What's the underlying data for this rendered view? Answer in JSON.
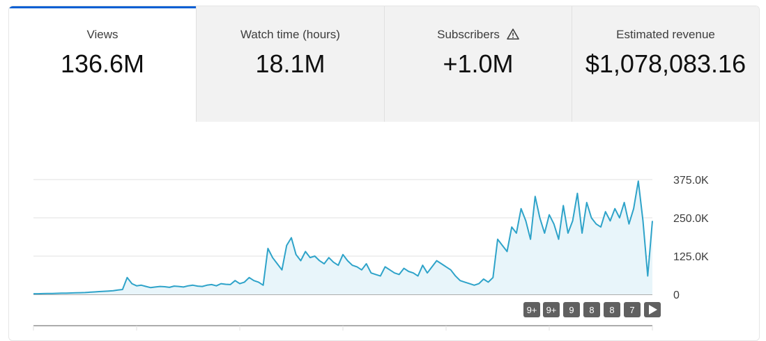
{
  "tabs": [
    {
      "label": "Views",
      "value": "136.6M",
      "active": true
    },
    {
      "label": "Watch time (hours)",
      "value": "18.1M",
      "active": false
    },
    {
      "label": "Subscribers",
      "value": "+1.0M",
      "active": false,
      "icon": "warning-icon"
    },
    {
      "label": "Estimated revenue",
      "value": "$1,078,083.16",
      "active": false
    }
  ],
  "colors": {
    "line": "#2ea3c9",
    "fill": "#e8f5fa",
    "grid": "#e0e0e0",
    "axis": "#909090",
    "active_indicator": "#065fd4"
  },
  "markers": [
    "9+",
    "9+",
    "9",
    "8",
    "8",
    "7"
  ],
  "chart_data": {
    "type": "area",
    "title": "",
    "xlabel": "",
    "ylabel": "",
    "ylim": [
      0,
      375000
    ],
    "y_ticks": [
      {
        "label": "375.0K",
        "value": 375000
      },
      {
        "label": "250.0K",
        "value": 250000
      },
      {
        "label": "125.0K",
        "value": 125000
      },
      {
        "label": "0",
        "value": 0
      }
    ],
    "grid": true,
    "legend": "none",
    "x_labels": [],
    "series": [
      {
        "values": [
          2000,
          2000,
          2500,
          3000,
          3000,
          3500,
          4000,
          4000,
          4500,
          5000,
          5500,
          6000,
          7000,
          8000,
          9000,
          10000,
          11000,
          12000,
          14000,
          16000,
          55000,
          35000,
          28000,
          30000,
          26000,
          22000,
          24000,
          26000,
          25000,
          23000,
          27000,
          26000,
          24000,
          28000,
          30000,
          27000,
          26000,
          30000,
          32000,
          28000,
          35000,
          33000,
          32000,
          45000,
          35000,
          40000,
          55000,
          45000,
          40000,
          30000,
          150000,
          120000,
          100000,
          80000,
          160000,
          185000,
          130000,
          110000,
          140000,
          120000,
          125000,
          110000,
          100000,
          120000,
          105000,
          95000,
          130000,
          110000,
          95000,
          90000,
          80000,
          100000,
          70000,
          65000,
          60000,
          90000,
          80000,
          70000,
          65000,
          85000,
          75000,
          70000,
          60000,
          95000,
          70000,
          90000,
          110000,
          100000,
          90000,
          80000,
          60000,
          45000,
          40000,
          35000,
          30000,
          35000,
          50000,
          40000,
          55000,
          180000,
          160000,
          140000,
          220000,
          200000,
          280000,
          240000,
          180000,
          320000,
          250000,
          200000,
          260000,
          230000,
          180000,
          290000,
          200000,
          240000,
          330000,
          200000,
          300000,
          250000,
          230000,
          220000,
          270000,
          240000,
          280000,
          250000,
          300000,
          230000,
          280000,
          370000,
          240000,
          60000,
          240000
        ]
      }
    ]
  }
}
